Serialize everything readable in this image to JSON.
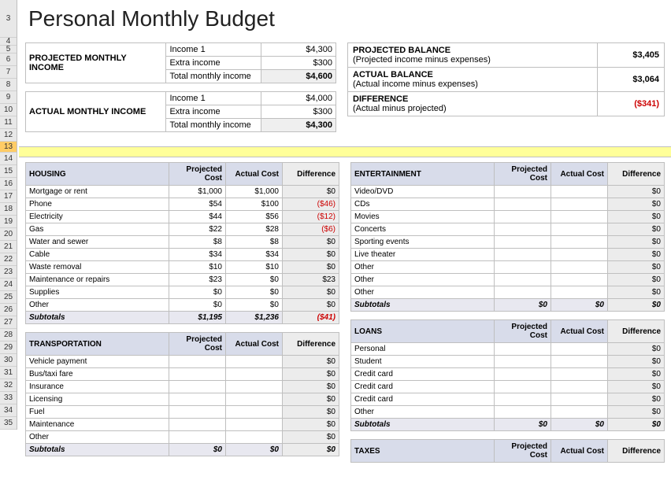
{
  "title": "Personal Monthly Budget",
  "rownums": [
    "3",
    "4",
    "5",
    "6",
    "7",
    "8",
    "9",
    "10",
    "11",
    "12",
    "13",
    "14",
    "15",
    "16",
    "17",
    "18",
    "19",
    "20",
    "21",
    "22",
    "23",
    "24",
    "25",
    "26",
    "27",
    "28",
    "29",
    "30",
    "31",
    "32",
    "33",
    "34",
    "35"
  ],
  "income": {
    "projected": {
      "label": "PROJECTED MONTHLY INCOME",
      "rows": [
        {
          "name": "Income 1",
          "value": "$4,300"
        },
        {
          "name": "Extra income",
          "value": "$300"
        }
      ],
      "total_label": "Total monthly income",
      "total_value": "$4,600"
    },
    "actual": {
      "label": "ACTUAL MONTHLY INCOME",
      "rows": [
        {
          "name": "Income 1",
          "value": "$4,000"
        },
        {
          "name": "Extra income",
          "value": "$300"
        }
      ],
      "total_label": "Total monthly income",
      "total_value": "$4,300"
    }
  },
  "balances": [
    {
      "title": "PROJECTED BALANCE",
      "sub": "(Projected income minus expenses)",
      "value": "$3,405",
      "neg": false
    },
    {
      "title": "ACTUAL BALANCE",
      "sub": "(Actual income minus expenses)",
      "value": "$3,064",
      "neg": false
    },
    {
      "title": "DIFFERENCE",
      "sub": "(Actual minus projected)",
      "value": "($341)",
      "neg": true
    }
  ],
  "headers": {
    "proj": "Projected Cost",
    "act": "Actual Cost",
    "diff": "Difference"
  },
  "sections_left": [
    {
      "title": "HOUSING",
      "rows": [
        {
          "name": "Mortgage or rent",
          "proj": "$1,000",
          "act": "$1,000",
          "diff": "$0"
        },
        {
          "name": "Phone",
          "proj": "$54",
          "act": "$100",
          "diff": "($46)",
          "neg": true
        },
        {
          "name": "Electricity",
          "proj": "$44",
          "act": "$56",
          "diff": "($12)",
          "neg": true
        },
        {
          "name": "Gas",
          "proj": "$22",
          "act": "$28",
          "diff": "($6)",
          "neg": true
        },
        {
          "name": "Water and sewer",
          "proj": "$8",
          "act": "$8",
          "diff": "$0"
        },
        {
          "name": "Cable",
          "proj": "$34",
          "act": "$34",
          "diff": "$0"
        },
        {
          "name": "Waste removal",
          "proj": "$10",
          "act": "$10",
          "diff": "$0"
        },
        {
          "name": "Maintenance or repairs",
          "proj": "$23",
          "act": "$0",
          "diff": "$23"
        },
        {
          "name": "Supplies",
          "proj": "$0",
          "act": "$0",
          "diff": "$0"
        },
        {
          "name": "Other",
          "proj": "$0",
          "act": "$0",
          "diff": "$0"
        }
      ],
      "sub": {
        "name": "Subtotals",
        "proj": "$1,195",
        "act": "$1,236",
        "diff": "($41)",
        "neg": true
      }
    },
    {
      "title": "TRANSPORTATION",
      "rows": [
        {
          "name": "Vehicle payment",
          "proj": "",
          "act": "",
          "diff": "$0"
        },
        {
          "name": "Bus/taxi fare",
          "proj": "",
          "act": "",
          "diff": "$0"
        },
        {
          "name": "Insurance",
          "proj": "",
          "act": "",
          "diff": "$0"
        },
        {
          "name": "Licensing",
          "proj": "",
          "act": "",
          "diff": "$0"
        },
        {
          "name": "Fuel",
          "proj": "",
          "act": "",
          "diff": "$0"
        },
        {
          "name": "Maintenance",
          "proj": "",
          "act": "",
          "diff": "$0"
        },
        {
          "name": "Other",
          "proj": "",
          "act": "",
          "diff": "$0"
        }
      ],
      "sub": {
        "name": "Subtotals",
        "proj": "$0",
        "act": "$0",
        "diff": "$0"
      }
    }
  ],
  "sections_right": [
    {
      "title": "ENTERTAINMENT",
      "rows": [
        {
          "name": "Video/DVD",
          "proj": "",
          "act": "",
          "diff": "$0"
        },
        {
          "name": "CDs",
          "proj": "",
          "act": "",
          "diff": "$0"
        },
        {
          "name": "Movies",
          "proj": "",
          "act": "",
          "diff": "$0"
        },
        {
          "name": "Concerts",
          "proj": "",
          "act": "",
          "diff": "$0"
        },
        {
          "name": "Sporting events",
          "proj": "",
          "act": "",
          "diff": "$0"
        },
        {
          "name": "Live theater",
          "proj": "",
          "act": "",
          "diff": "$0"
        },
        {
          "name": "Other",
          "proj": "",
          "act": "",
          "diff": "$0"
        },
        {
          "name": "Other",
          "proj": "",
          "act": "",
          "diff": "$0"
        },
        {
          "name": "Other",
          "proj": "",
          "act": "",
          "diff": "$0"
        }
      ],
      "sub": {
        "name": "Subtotals",
        "proj": "$0",
        "act": "$0",
        "diff": "$0"
      }
    },
    {
      "title": "LOANS",
      "rows": [
        {
          "name": "Personal",
          "proj": "",
          "act": "",
          "diff": "$0"
        },
        {
          "name": "Student",
          "proj": "",
          "act": "",
          "diff": "$0"
        },
        {
          "name": "Credit card",
          "proj": "",
          "act": "",
          "diff": "$0"
        },
        {
          "name": "Credit card",
          "proj": "",
          "act": "",
          "diff": "$0"
        },
        {
          "name": "Credit card",
          "proj": "",
          "act": "",
          "diff": "$0"
        },
        {
          "name": "Other",
          "proj": "",
          "act": "",
          "diff": "$0"
        }
      ],
      "sub": {
        "name": "Subtotals",
        "proj": "$0",
        "act": "$0",
        "diff": "$0"
      }
    },
    {
      "title": "TAXES",
      "rows": [],
      "header_only": true
    }
  ]
}
